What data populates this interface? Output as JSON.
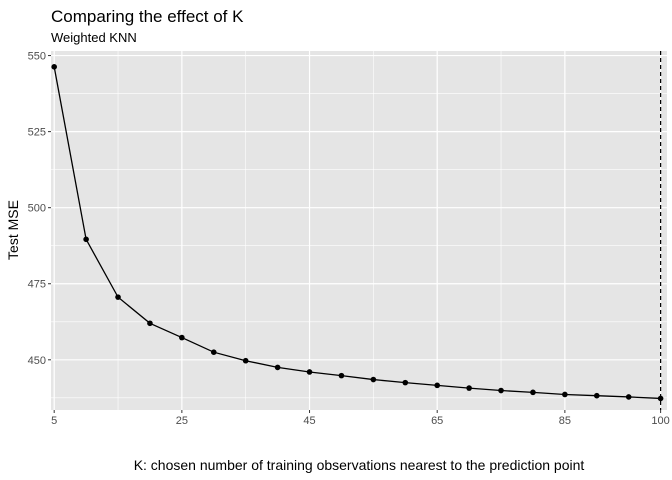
{
  "chart_data": {
    "type": "line",
    "title": "Comparing the effect of K",
    "subtitle": "Weighted KNN",
    "xlabel": "K: chosen number of training observations nearest to the prediction point",
    "ylabel": "Test MSE",
    "xlim": [
      4.5,
      101
    ],
    "ylim": [
      433.5,
      551.5
    ],
    "x_ticks": [
      5,
      25,
      45,
      65,
      85,
      100
    ],
    "y_ticks": [
      450,
      475,
      500,
      525,
      550
    ],
    "grid": true,
    "vline_x": 100,
    "x": [
      5,
      10,
      15,
      20,
      25,
      30,
      35,
      40,
      45,
      50,
      55,
      60,
      65,
      70,
      75,
      80,
      85,
      90,
      95,
      100
    ],
    "series": [
      {
        "values": [
          546.3,
          489.6,
          470.6,
          462.0,
          457.3,
          452.5,
          449.7,
          447.5,
          446.0,
          444.8,
          443.5,
          442.5,
          441.6,
          440.7,
          439.9,
          439.3,
          438.6,
          438.2,
          437.8,
          437.3
        ]
      }
    ],
    "colors": {
      "panel": "#e5e5e5",
      "grid_major": "#ffffff",
      "line": "#000000",
      "tick_text": "#4d4d4d"
    }
  }
}
